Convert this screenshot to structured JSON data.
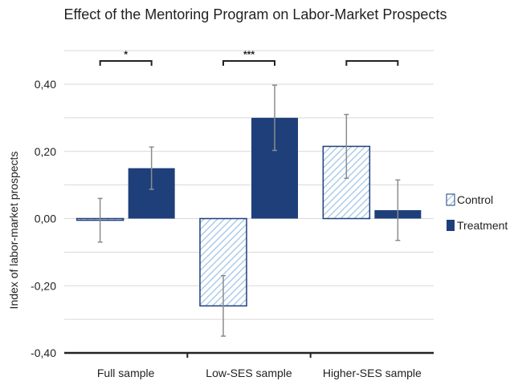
{
  "chart_data": {
    "type": "bar",
    "title": "Effect of the Mentoring Program on Labor-Market Prospects",
    "xlabel": "",
    "ylabel": "Index of labor-market prospects",
    "categories": [
      "Full sample",
      "Low-SES sample",
      "Higher-SES sample"
    ],
    "series": [
      {
        "name": "Control",
        "values": [
          -0.005,
          -0.26,
          0.215
        ],
        "error": [
          0.065,
          0.09,
          0.095
        ],
        "style": "hatched",
        "color": "#9dc3e6"
      },
      {
        "name": "Treatment",
        "values": [
          0.15,
          0.3,
          0.025
        ],
        "error": [
          0.063,
          0.097,
          0.09
        ],
        "style": "solid",
        "color": "#1f3f7a"
      }
    ],
    "ylim": [
      -0.4,
      0.5
    ],
    "yticks": [
      -0.4,
      -0.2,
      0.0,
      0.2,
      0.4
    ],
    "ytick_labels": [
      "-0,40",
      "-0,20",
      "0,00",
      "0,20",
      "0,40"
    ],
    "minor_grid": [
      -0.3,
      -0.1,
      0.1,
      0.3,
      0.5
    ],
    "grid": true,
    "significance": [
      "*",
      "***",
      ""
    ],
    "legend_position": "right"
  },
  "colors": {
    "dark_blue": "#1f3f7a",
    "hatch_blue": "#9dc3e6",
    "grid": "#d9d9d9",
    "error_bar": "#8c8c8c",
    "text": "#222222"
  }
}
